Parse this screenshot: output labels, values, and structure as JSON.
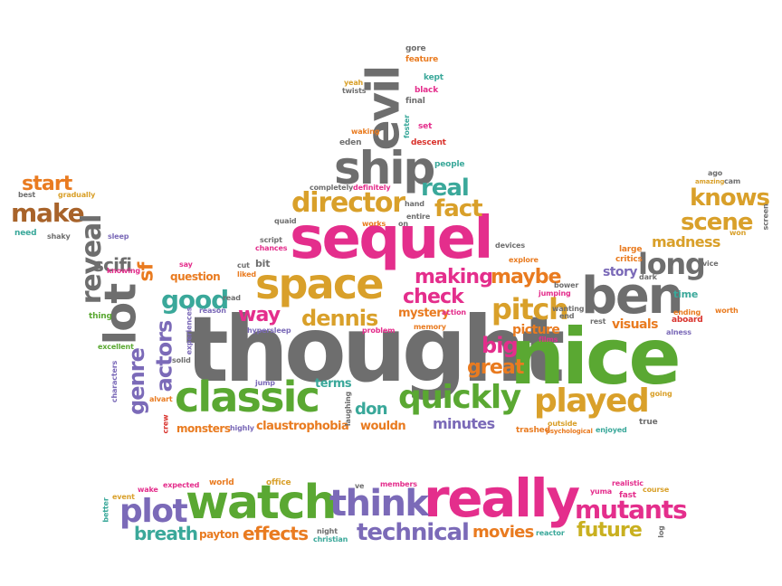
{
  "colors": {
    "gray": "#6e6e6e",
    "pink": "#e42e8c",
    "orange": "#e97b20",
    "gold": "#d9a02a",
    "green": "#5aa832",
    "purple": "#7b6ab8",
    "red": "#d9322c",
    "yellow": "#c9b020",
    "teal": "#3aa89a",
    "brown": "#a8632a"
  },
  "words": [
    {
      "text": "thought",
      "color": "gray"
    },
    {
      "text": "nice",
      "color": "green"
    },
    {
      "text": "sequel",
      "color": "pink"
    },
    {
      "text": "really",
      "color": "pink"
    },
    {
      "text": "watch",
      "color": "green"
    },
    {
      "text": "classic",
      "color": "green"
    },
    {
      "text": "ben",
      "color": "gray"
    },
    {
      "text": "space",
      "color": "gold"
    },
    {
      "text": "ship",
      "color": "gray"
    },
    {
      "text": "evil",
      "color": "gray"
    },
    {
      "text": "lot",
      "color": "gray"
    },
    {
      "text": "think",
      "color": "purple"
    },
    {
      "text": "played",
      "color": "gold"
    },
    {
      "text": "quickly",
      "color": "green"
    },
    {
      "text": "plot",
      "color": "purple"
    },
    {
      "text": "mutants",
      "color": "pink"
    },
    {
      "text": "long",
      "color": "gray"
    },
    {
      "text": "pitch",
      "color": "gold"
    },
    {
      "text": "director",
      "color": "gold"
    },
    {
      "text": "good",
      "color": "teal"
    },
    {
      "text": "dennis",
      "color": "gold"
    },
    {
      "text": "technical",
      "color": "purple"
    },
    {
      "text": "knows",
      "color": "gold"
    },
    {
      "text": "scene",
      "color": "gold"
    },
    {
      "text": "make",
      "color": "brown"
    },
    {
      "text": "start",
      "color": "orange"
    },
    {
      "text": "reveal",
      "color": "gray"
    },
    {
      "text": "real",
      "color": "teal"
    },
    {
      "text": "fact",
      "color": "gold"
    },
    {
      "text": "making",
      "color": "pink"
    },
    {
      "text": "maybe",
      "color": "orange"
    },
    {
      "text": "check",
      "color": "pink"
    },
    {
      "text": "genre",
      "color": "purple"
    },
    {
      "text": "actors",
      "color": "purple"
    },
    {
      "text": "big",
      "color": "pink"
    },
    {
      "text": "great",
      "color": "orange"
    },
    {
      "text": "way",
      "color": "pink"
    },
    {
      "text": "scifi",
      "color": "gray"
    },
    {
      "text": "sf",
      "color": "orange"
    },
    {
      "text": "effects",
      "color": "orange"
    },
    {
      "text": "breath",
      "color": "teal"
    },
    {
      "text": "movies",
      "color": "orange"
    },
    {
      "text": "future",
      "color": "yellow"
    },
    {
      "text": "madness",
      "color": "gold"
    },
    {
      "text": "don",
      "color": "teal"
    },
    {
      "text": "minutes",
      "color": "purple"
    },
    {
      "text": "picture",
      "color": "orange"
    },
    {
      "text": "visuals",
      "color": "orange"
    },
    {
      "text": "story",
      "color": "purple"
    },
    {
      "text": "mystery",
      "color": "orange"
    },
    {
      "text": "terms",
      "color": "teal"
    },
    {
      "text": "claustrophobia",
      "color": "orange"
    },
    {
      "text": "wouldn",
      "color": "orange"
    },
    {
      "text": "monsters",
      "color": "orange"
    },
    {
      "text": "payton",
      "color": "orange"
    },
    {
      "text": "question",
      "color": "orange"
    },
    {
      "text": "people",
      "color": "teal"
    },
    {
      "text": "descent",
      "color": "red"
    },
    {
      "text": "feature",
      "color": "orange"
    },
    {
      "text": "gore",
      "color": "gray"
    },
    {
      "text": "kept",
      "color": "teal"
    },
    {
      "text": "black",
      "color": "pink"
    },
    {
      "text": "final",
      "color": "gray"
    },
    {
      "text": "set",
      "color": "pink"
    },
    {
      "text": "foster",
      "color": "teal"
    },
    {
      "text": "waking",
      "color": "orange"
    },
    {
      "text": "eden",
      "color": "gray"
    },
    {
      "text": "yeah",
      "color": "gold"
    },
    {
      "text": "twists",
      "color": "gray"
    },
    {
      "text": "completely",
      "color": "gray"
    },
    {
      "text": "definitely",
      "color": "pink"
    },
    {
      "text": "hand",
      "color": "gray"
    },
    {
      "text": "entire",
      "color": "gray"
    },
    {
      "text": "quaid",
      "color": "gray"
    },
    {
      "text": "works",
      "color": "orange"
    },
    {
      "text": "on",
      "color": "gray"
    },
    {
      "text": "script",
      "color": "gray"
    },
    {
      "text": "chances",
      "color": "pink"
    },
    {
      "text": "bit",
      "color": "gray"
    },
    {
      "text": "cut",
      "color": "gray"
    },
    {
      "text": "liked",
      "color": "orange"
    },
    {
      "text": "read",
      "color": "gray"
    },
    {
      "text": "say",
      "color": "pink"
    },
    {
      "text": "reason",
      "color": "purple"
    },
    {
      "text": "hypersleep",
      "color": "purple"
    },
    {
      "text": "problem",
      "color": "pink"
    },
    {
      "text": "memory",
      "color": "orange"
    },
    {
      "text": "right",
      "color": "gray"
    },
    {
      "text": "action",
      "color": "pink"
    },
    {
      "text": "jump",
      "color": "purple"
    },
    {
      "text": "solid",
      "color": "gray"
    },
    {
      "text": "experiences",
      "color": "purple"
    },
    {
      "text": "alvart",
      "color": "orange"
    },
    {
      "text": "crew",
      "color": "red"
    },
    {
      "text": "highly",
      "color": "purple"
    },
    {
      "text": "laughing",
      "color": "gray"
    },
    {
      "text": "characters",
      "color": "purple"
    },
    {
      "text": "excellent",
      "color": "green"
    },
    {
      "text": "thing",
      "color": "green"
    },
    {
      "text": "need",
      "color": "teal"
    },
    {
      "text": "shaky",
      "color": "gray"
    },
    {
      "text": "gradually",
      "color": "gold"
    },
    {
      "text": "best",
      "color": "gray"
    },
    {
      "text": "sleep",
      "color": "purple"
    },
    {
      "text": "knowing",
      "color": "pink"
    },
    {
      "text": "devices",
      "color": "gray"
    },
    {
      "text": "explore",
      "color": "orange"
    },
    {
      "text": "bower",
      "color": "gray"
    },
    {
      "text": "jumping",
      "color": "pink"
    },
    {
      "text": "wanting",
      "color": "gray"
    },
    {
      "text": "end",
      "color": "gray"
    },
    {
      "text": "rest",
      "color": "gray"
    },
    {
      "text": "films",
      "color": "pink"
    },
    {
      "text": "large",
      "color": "orange"
    },
    {
      "text": "critics",
      "color": "orange"
    },
    {
      "text": "trashed",
      "color": "orange"
    },
    {
      "text": "psychological",
      "color": "orange"
    },
    {
      "text": "outside",
      "color": "gold"
    },
    {
      "text": "enjoyed",
      "color": "teal"
    },
    {
      "text": "true",
      "color": "gray"
    },
    {
      "text": "going",
      "color": "gold"
    },
    {
      "text": "alness",
      "color": "purple"
    },
    {
      "text": "aboard",
      "color": "red"
    },
    {
      "text": "time",
      "color": "teal"
    },
    {
      "text": "ending",
      "color": "orange"
    },
    {
      "text": "worth",
      "color": "orange"
    },
    {
      "text": "vice",
      "color": "gray"
    },
    {
      "text": "won",
      "color": "gold"
    },
    {
      "text": "screen",
      "color": "gray"
    },
    {
      "text": "ago",
      "color": "gray"
    },
    {
      "text": "amazing",
      "color": "gold"
    },
    {
      "text": "cam",
      "color": "gray"
    },
    {
      "text": "dark",
      "color": "gray"
    },
    {
      "text": "wake",
      "color": "pink"
    },
    {
      "text": "event",
      "color": "gold"
    },
    {
      "text": "better",
      "color": "teal"
    },
    {
      "text": "expected",
      "color": "pink"
    },
    {
      "text": "world",
      "color": "orange"
    },
    {
      "text": "office",
      "color": "gold"
    },
    {
      "text": "ve",
      "color": "gray"
    },
    {
      "text": "members",
      "color": "pink"
    },
    {
      "text": "night",
      "color": "gray"
    },
    {
      "text": "christian",
      "color": "teal"
    },
    {
      "text": "reactor",
      "color": "teal"
    },
    {
      "text": "yuma",
      "color": "pink"
    },
    {
      "text": "fast",
      "color": "pink"
    },
    {
      "text": "realistic",
      "color": "pink"
    },
    {
      "text": "course",
      "color": "gold"
    },
    {
      "text": "log",
      "color": "gray"
    }
  ]
}
